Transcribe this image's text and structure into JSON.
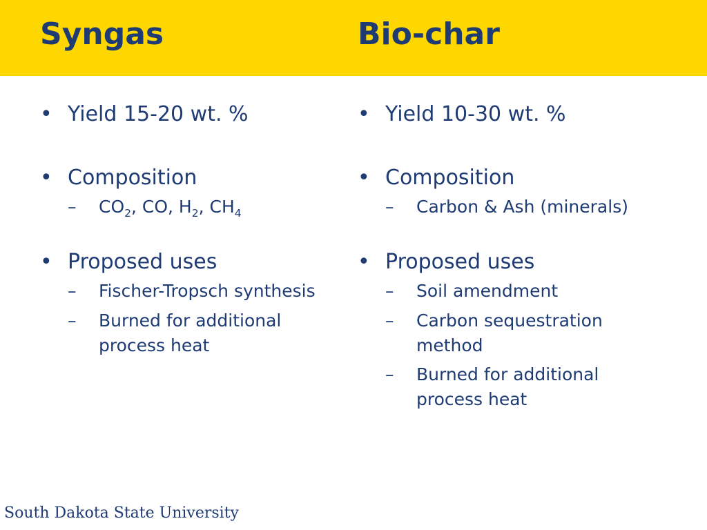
{
  "left": {
    "title": "Syngas",
    "bullets": [
      {
        "label": "Yield 15-20 wt. %",
        "subs": []
      },
      {
        "label": "Composition",
        "subs": []
      },
      {
        "label": "Proposed uses",
        "subs": [
          "Fischer-Tropsch synthesis",
          "Burned for additional process heat"
        ]
      }
    ],
    "composition_formula": {
      "p1": "CO",
      "s1": "2",
      "p2": ", CO, H",
      "s2": "2",
      "p3": ", CH",
      "s3": "4"
    }
  },
  "right": {
    "title": "Bio-char",
    "bullets": [
      {
        "label": "Yield 10-30 wt. %",
        "subs": []
      },
      {
        "label": "Composition",
        "subs": [
          "Carbon & Ash (minerals)"
        ]
      },
      {
        "label": "Proposed uses",
        "subs": [
          "Soil amendment",
          "Carbon sequestration method",
          "Burned for additional process heat"
        ]
      }
    ]
  },
  "footer": {
    "logo_text": "South Dakota State University"
  },
  "colors": {
    "band": "#ffd700",
    "text": "#1f3b73",
    "background": "#ffffff"
  }
}
